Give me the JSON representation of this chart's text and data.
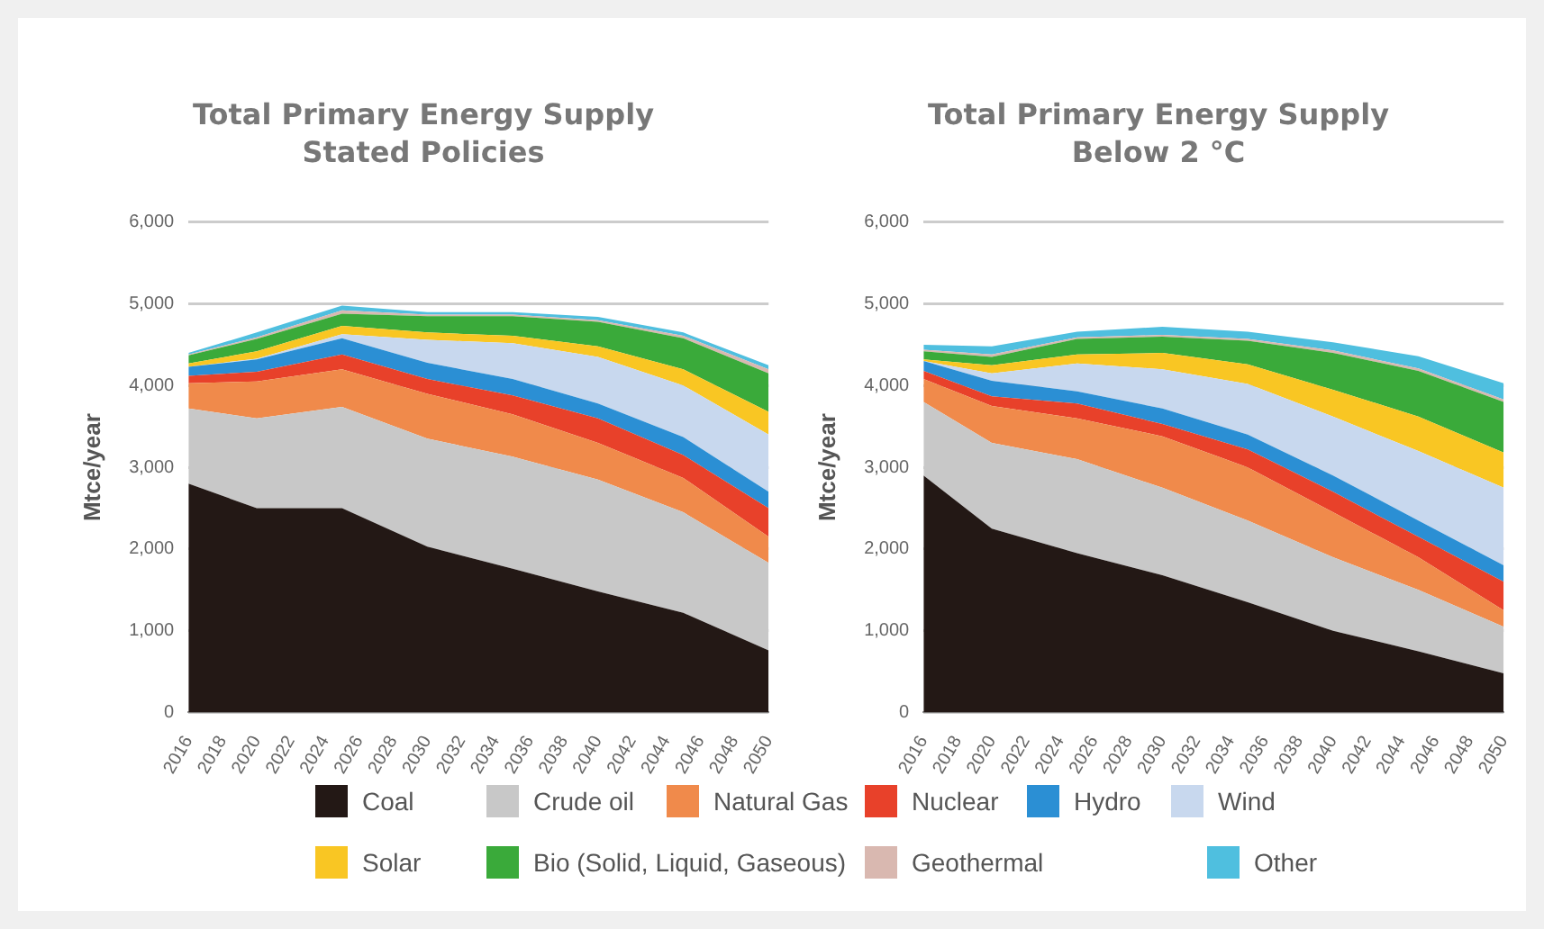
{
  "chart_data": [
    {
      "type": "area",
      "stacked": true,
      "title": "Total Primary Energy Supply",
      "subtitle": "Stated Policies",
      "ylabel": "Mtce/year",
      "x": [
        2016,
        2020,
        2025,
        2030,
        2035,
        2040,
        2045,
        2050
      ],
      "xlim": [
        2016,
        2050
      ],
      "xticks": [
        2016,
        2018,
        2020,
        2022,
        2024,
        2026,
        2028,
        2030,
        2032,
        2034,
        2036,
        2038,
        2040,
        2042,
        2044,
        2046,
        2048,
        2050
      ],
      "ylim": [
        0,
        6000
      ],
      "yticks": [
        {
          "value": 0,
          "label": "0"
        },
        {
          "value": 1000,
          "label": "1,000"
        },
        {
          "value": 2000,
          "label": "2,000"
        },
        {
          "value": 3000,
          "label": "3,000"
        },
        {
          "value": 4000,
          "label": "4,000"
        },
        {
          "value": 5000,
          "label": "5,000"
        },
        {
          "value": 6000,
          "label": "6,000"
        }
      ],
      "grid": "y",
      "legend": "bottom",
      "series": [
        {
          "name": "Coal",
          "color": "#231815",
          "values": [
            2800,
            2500,
            2500,
            2030,
            1760,
            1480,
            1220,
            760
          ]
        },
        {
          "name": "Crude oil",
          "color": "#c8c8c8",
          "values": [
            920,
            1100,
            1240,
            1320,
            1370,
            1370,
            1230,
            1070
          ]
        },
        {
          "name": "Natural Gas",
          "color": "#f08a4b",
          "values": [
            310,
            450,
            460,
            550,
            520,
            450,
            420,
            320
          ]
        },
        {
          "name": "Nuclear",
          "color": "#e8412a",
          "values": [
            90,
            120,
            180,
            180,
            230,
            300,
            280,
            350
          ]
        },
        {
          "name": "Hydro",
          "color": "#2b8fd4",
          "values": [
            110,
            150,
            200,
            200,
            200,
            180,
            220,
            200
          ]
        },
        {
          "name": "Wind",
          "color": "#c8d8ee",
          "values": [
            0,
            10,
            50,
            280,
            440,
            570,
            630,
            700
          ]
        },
        {
          "name": "Solar",
          "color": "#f9c623",
          "values": [
            40,
            90,
            100,
            90,
            90,
            130,
            200,
            280
          ]
        },
        {
          "name": "Bio (Solid, Liquid, Gaseous)",
          "color": "#3aaa3a",
          "values": [
            100,
            150,
            150,
            200,
            240,
            300,
            380,
            470
          ]
        },
        {
          "name": "Geothermal",
          "color": "#d9b8b0",
          "values": [
            10,
            20,
            40,
            20,
            20,
            20,
            30,
            50
          ]
        },
        {
          "name": "Other",
          "color": "#4fbfdf",
          "values": [
            20,
            60,
            60,
            30,
            30,
            40,
            40,
            50
          ]
        }
      ]
    },
    {
      "type": "area",
      "stacked": true,
      "title": "Total Primary Energy Supply",
      "subtitle": "Below 2 °C",
      "ylabel": "Mtce/year",
      "x": [
        2016,
        2020,
        2025,
        2030,
        2035,
        2040,
        2045,
        2050
      ],
      "xlim": [
        2016,
        2050
      ],
      "xticks": [
        2016,
        2018,
        2020,
        2022,
        2024,
        2026,
        2028,
        2030,
        2032,
        2034,
        2036,
        2038,
        2040,
        2042,
        2044,
        2046,
        2048,
        2050
      ],
      "ylim": [
        0,
        6000
      ],
      "yticks": [
        {
          "value": 0,
          "label": "0"
        },
        {
          "value": 1000,
          "label": "1,000"
        },
        {
          "value": 2000,
          "label": "2,000"
        },
        {
          "value": 3000,
          "label": "3,000"
        },
        {
          "value": 4000,
          "label": "4,000"
        },
        {
          "value": 5000,
          "label": "5,000"
        },
        {
          "value": 6000,
          "label": "6,000"
        }
      ],
      "grid": "y",
      "legend": "bottom",
      "series": [
        {
          "name": "Coal",
          "color": "#231815",
          "values": [
            2900,
            2250,
            1950,
            1680,
            1350,
            1000,
            750,
            480
          ]
        },
        {
          "name": "Crude oil",
          "color": "#c8c8c8",
          "values": [
            900,
            1050,
            1150,
            1070,
            1000,
            900,
            750,
            570
          ]
        },
        {
          "name": "Natural Gas",
          "color": "#f08a4b",
          "values": [
            280,
            450,
            500,
            630,
            650,
            550,
            400,
            200
          ]
        },
        {
          "name": "Nuclear",
          "color": "#e8412a",
          "values": [
            100,
            120,
            180,
            150,
            220,
            250,
            250,
            350
          ]
        },
        {
          "name": "Hydro",
          "color": "#2b8fd4",
          "values": [
            120,
            190,
            150,
            190,
            180,
            200,
            200,
            200
          ]
        },
        {
          "name": "Wind",
          "color": "#c8d8ee",
          "values": [
            0,
            90,
            340,
            480,
            620,
            720,
            850,
            950
          ]
        },
        {
          "name": "Solar",
          "color": "#f9c623",
          "values": [
            20,
            100,
            110,
            200,
            240,
            330,
            420,
            430
          ]
        },
        {
          "name": "Bio (Solid, Liquid, Gaseous)",
          "color": "#3aaa3a",
          "values": [
            100,
            100,
            190,
            200,
            290,
            450,
            560,
            620
          ]
        },
        {
          "name": "Geothermal",
          "color": "#d9b8b0",
          "values": [
            20,
            30,
            20,
            20,
            20,
            30,
            30,
            30
          ]
        },
        {
          "name": "Other",
          "color": "#4fbfdf",
          "values": [
            60,
            100,
            70,
            100,
            90,
            100,
            150,
            200
          ]
        }
      ]
    }
  ]
}
